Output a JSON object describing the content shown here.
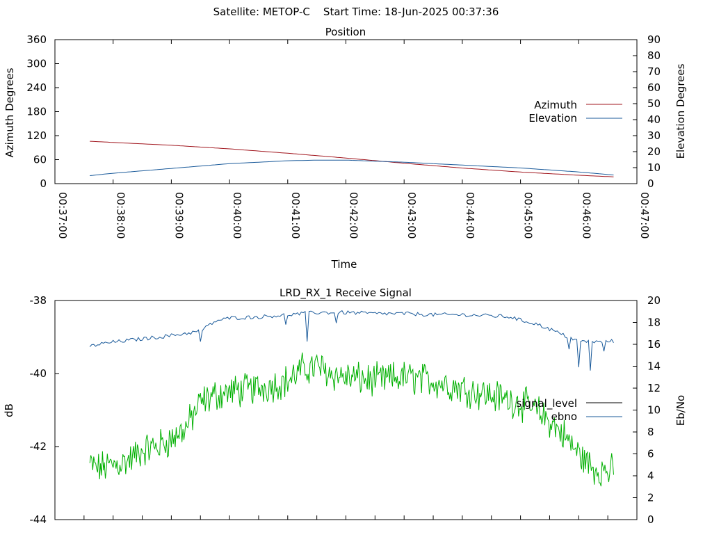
{
  "header": "Satellite: METOP-C    Start Time: 18-Jun-2025 00:37:36",
  "colors": {
    "azimuth": "#a0141c",
    "elevation": "#1a5a9a",
    "signal_level": "#00b000",
    "ebno": "#1a5a9a",
    "signal_level_legend": "#000000",
    "axis": "#000000"
  },
  "chart_data": [
    {
      "type": "line",
      "title": "Position",
      "xlabel": "Time",
      "ylabel": "Azimuth Degrees",
      "y2label": "Elevation Degrees",
      "xlim": [
        "00:37:00",
        "00:47:00"
      ],
      "ylim": [
        0,
        360
      ],
      "y2lim": [
        0,
        90
      ],
      "grid": false,
      "legend_position": "right-middle",
      "x_ticks": [
        "00:37:00",
        "00:38:00",
        "00:39:00",
        "00:40:00",
        "00:41:00",
        "00:42:00",
        "00:43:00",
        "00:44:00",
        "00:45:00",
        "00:46:00",
        "00:47:00"
      ],
      "y_ticks": [
        0,
        60,
        120,
        180,
        240,
        300,
        360
      ],
      "y2_ticks": [
        0,
        10,
        20,
        30,
        40,
        50,
        60,
        70,
        80,
        90
      ],
      "series": [
        {
          "name": "Azimuth",
          "axis": "left",
          "x": [
            "00:37:36",
            "00:38:00",
            "00:39:00",
            "00:40:00",
            "00:41:00",
            "00:42:00",
            "00:43:00",
            "00:44:00",
            "00:45:00",
            "00:46:00",
            "00:46:36"
          ],
          "values": [
            106,
            103,
            96,
            87,
            76,
            64,
            51,
            39,
            29,
            21,
            17
          ]
        },
        {
          "name": "Elevation",
          "axis": "right",
          "x": [
            "00:37:36",
            "00:38:00",
            "00:39:00",
            "00:40:00",
            "00:41:00",
            "00:41:30",
            "00:42:00",
            "00:43:00",
            "00:44:00",
            "00:45:00",
            "00:46:00",
            "00:46:36"
          ],
          "values": [
            5,
            6.5,
            9.5,
            12.5,
            14.3,
            14.7,
            14.7,
            13.4,
            11.6,
            9.8,
            7.3,
            5.4
          ]
        }
      ]
    },
    {
      "type": "line",
      "title": "LRD_RX_1 Receive Signal",
      "xlabel": "",
      "ylabel": "dB",
      "y2label": "Eb/No",
      "xlim": [
        "00:37:00",
        "00:47:00"
      ],
      "ylim": [
        -44,
        -38
      ],
      "y2lim": [
        0,
        20
      ],
      "grid": false,
      "legend_position": "right-middle",
      "y_ticks": [
        -44,
        -42,
        -40,
        -38
      ],
      "y2_ticks": [
        0,
        2,
        4,
        6,
        8,
        10,
        12,
        14,
        16,
        18,
        20
      ],
      "series": [
        {
          "name": "signal_level",
          "axis": "left",
          "x": [
            "00:37:36",
            "00:37:45",
            "00:38:00",
            "00:38:15",
            "00:38:30",
            "00:38:45",
            "00:39:00",
            "00:39:15",
            "00:39:30",
            "00:39:45",
            "00:40:00",
            "00:40:30",
            "00:41:00",
            "00:41:15",
            "00:41:30",
            "00:41:45",
            "00:42:00",
            "00:42:30",
            "00:43:00",
            "00:43:30",
            "00:44:00",
            "00:44:30",
            "00:45:00",
            "00:45:15",
            "00:45:30",
            "00:45:45",
            "00:46:00",
            "00:46:15",
            "00:46:36"
          ],
          "values": [
            -42.5,
            -42.6,
            -42.5,
            -42.4,
            -42.1,
            -42.0,
            -41.8,
            -41.5,
            -40.8,
            -40.6,
            -40.5,
            -40.4,
            -40.2,
            -39.9,
            -39.8,
            -40.0,
            -40.1,
            -40.2,
            -40.1,
            -40.2,
            -40.4,
            -40.6,
            -40.8,
            -41.0,
            -41.3,
            -41.7,
            -42.2,
            -42.6,
            -42.7
          ]
        },
        {
          "name": "ebno",
          "axis": "right",
          "x": [
            "00:37:36",
            "00:37:45",
            "00:38:00",
            "00:38:30",
            "00:39:00",
            "00:39:30",
            "00:39:45",
            "00:40:00",
            "00:40:30",
            "00:41:00",
            "00:41:30",
            "00:42:00",
            "00:42:30",
            "00:43:00",
            "00:43:30",
            "00:44:00",
            "00:44:30",
            "00:44:50",
            "00:45:00",
            "00:45:15",
            "00:45:30",
            "00:45:45",
            "00:46:00",
            "00:46:15",
            "00:46:36"
          ],
          "values": [
            15.8,
            16.0,
            16.2,
            16.5,
            16.8,
            17.2,
            18.1,
            18.4,
            18.5,
            18.7,
            18.9,
            18.9,
            18.8,
            18.8,
            18.7,
            18.7,
            18.6,
            18.5,
            18.2,
            17.9,
            17.4,
            16.8,
            16.3,
            16.2,
            16.3
          ]
        }
      ]
    }
  ]
}
